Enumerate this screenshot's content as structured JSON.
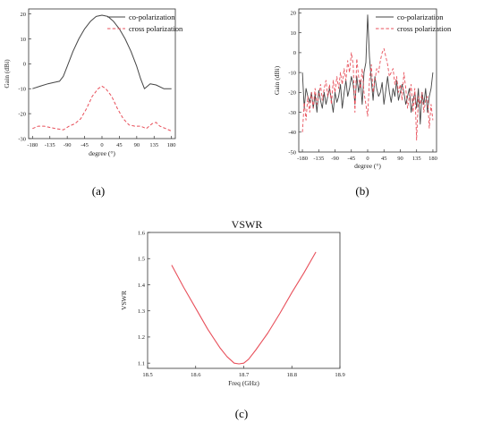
{
  "chart_data": [
    {
      "type": "line",
      "panel_label": "(a)",
      "xlabel": "degree (°)",
      "ylabel": "Gain (dBi)",
      "xlim": [
        -190,
        190
      ],
      "ylim": [
        -30,
        22
      ],
      "xticks": [
        -180,
        -135,
        -90,
        -45,
        0,
        45,
        90,
        135,
        180
      ],
      "yticks": [
        20,
        10,
        0,
        -10,
        -20,
        -30
      ],
      "legend_position": "top-right",
      "series": [
        {
          "name": "co-polarization",
          "color": "#444444",
          "dash": "solid",
          "x": [
            -180,
            -160,
            -140,
            -125,
            -110,
            -100,
            -90,
            -75,
            -60,
            -45,
            -30,
            -15,
            0,
            15,
            30,
            45,
            60,
            75,
            90,
            100,
            110,
            125,
            140,
            160,
            180
          ],
          "y": [
            -10,
            -9,
            -8,
            -7.5,
            -7,
            -5,
            -1,
            5,
            10,
            14,
            17,
            19,
            19.5,
            19,
            17,
            14,
            10,
            5,
            -1,
            -6,
            -10,
            -8,
            -8.5,
            -10,
            -10
          ]
        },
        {
          "name": "cross polarization",
          "color": "#e8505b",
          "dash": "dashed",
          "x": [
            -180,
            -165,
            -150,
            -135,
            -120,
            -100,
            -85,
            -70,
            -55,
            -40,
            -25,
            -10,
            0,
            10,
            25,
            40,
            55,
            70,
            85,
            100,
            115,
            130,
            140,
            150,
            165,
            180
          ],
          "y": [
            -26,
            -25,
            -25,
            -25.5,
            -26,
            -26.5,
            -25,
            -24,
            -22,
            -18,
            -13,
            -10,
            -9,
            -10,
            -13,
            -18,
            -22,
            -24.5,
            -25,
            -25,
            -26,
            -24,
            -23.5,
            -25,
            -26,
            -27
          ]
        }
      ]
    },
    {
      "type": "line",
      "panel_label": "(b)",
      "xlabel": "degree (°)",
      "ylabel": "Gain (dBi)",
      "xlim": [
        -190,
        190
      ],
      "ylim": [
        -50,
        22
      ],
      "xticks": [
        -180,
        -135,
        -90,
        -45,
        0,
        45,
        90,
        135,
        180
      ],
      "yticks": [
        20,
        10,
        0,
        -10,
        -20,
        -30,
        -40,
        -50
      ],
      "legend_position": "top-right",
      "series": [
        {
          "name": "co-polarization",
          "color": "#444444",
          "dash": "solid",
          "x": [
            -180,
            -175,
            -170,
            -165,
            -160,
            -155,
            -150,
            -145,
            -140,
            -135,
            -130,
            -125,
            -120,
            -115,
            -110,
            -105,
            -100,
            -95,
            -90,
            -85,
            -80,
            -75,
            -70,
            -65,
            -60,
            -55,
            -50,
            -45,
            -40,
            -35,
            -30,
            -25,
            -20,
            -15,
            -10,
            -5,
            0,
            5,
            10,
            15,
            20,
            25,
            30,
            35,
            40,
            45,
            50,
            55,
            60,
            65,
            70,
            75,
            80,
            85,
            90,
            95,
            100,
            105,
            110,
            115,
            120,
            125,
            130,
            135,
            140,
            145,
            150,
            155,
            160,
            165,
            170,
            175,
            180
          ],
          "y": [
            -10,
            -28,
            -18,
            -22,
            -25,
            -20,
            -28,
            -21,
            -30,
            -19,
            -24,
            -28,
            -20,
            -26,
            -22,
            -18,
            -24,
            -30,
            -20,
            -25,
            -22,
            -16,
            -28,
            -20,
            -14,
            -22,
            -18,
            -12,
            -16,
            -26,
            -12,
            -20,
            -14,
            -26,
            -10,
            -5,
            19,
            -2,
            -14,
            -24,
            -12,
            -18,
            -22,
            -20,
            -15,
            -26,
            -19,
            -12,
            -20,
            -25,
            -18,
            -22,
            -14,
            -24,
            -20,
            -16,
            -20,
            -26,
            -22,
            -18,
            -30,
            -24,
            -20,
            -28,
            -18,
            -36,
            -20,
            -26,
            -18,
            -30,
            -22,
            -18,
            -10
          ]
        },
        {
          "name": "cross polarization",
          "color": "#e8505b",
          "dash": "dashed",
          "x": [
            -180,
            -175,
            -170,
            -165,
            -160,
            -155,
            -150,
            -145,
            -140,
            -135,
            -130,
            -125,
            -120,
            -115,
            -110,
            -105,
            -100,
            -95,
            -90,
            -85,
            -80,
            -75,
            -70,
            -65,
            -60,
            -55,
            -50,
            -45,
            -40,
            -35,
            -30,
            -25,
            -20,
            -15,
            -10,
            -5,
            0,
            5,
            10,
            15,
            20,
            25,
            30,
            35,
            40,
            45,
            50,
            55,
            60,
            65,
            70,
            75,
            80,
            85,
            90,
            95,
            100,
            105,
            110,
            115,
            120,
            125,
            130,
            135,
            140,
            145,
            150,
            155,
            160,
            165,
            170,
            175,
            180
          ],
          "y": [
            -40,
            -25,
            -34,
            -22,
            -30,
            -20,
            -28,
            -18,
            -26,
            -22,
            -16,
            -24,
            -18,
            -14,
            -22,
            -16,
            -26,
            -14,
            -20,
            -12,
            -18,
            -10,
            -16,
            -8,
            -14,
            -4,
            -10,
            0,
            -6,
            -30,
            -3,
            -12,
            -18,
            -8,
            -20,
            -26,
            -32,
            -14,
            -6,
            -20,
            -14,
            -8,
            -10,
            -4,
            0,
            2,
            -2,
            -6,
            -12,
            -10,
            -8,
            -16,
            -12,
            -20,
            -16,
            -24,
            -10,
            -18,
            -28,
            -22,
            -16,
            -30,
            -18,
            -44,
            -22,
            -26,
            -20,
            -30,
            -24,
            -22,
            -38,
            -26,
            -34
          ]
        }
      ]
    },
    {
      "type": "line",
      "panel_label": "(c)",
      "title": "VSWR",
      "xlabel": "Freq (GHz)",
      "ylabel": "VSWR",
      "xlim": [
        18.5,
        18.9
      ],
      "ylim": [
        1.08,
        1.6
      ],
      "xticks": [
        18.5,
        18.6,
        18.7,
        18.8,
        18.9
      ],
      "yticks": [
        1.6,
        1.5,
        1.4,
        1.3,
        1.2,
        1.1
      ],
      "series": [
        {
          "color": "#e8505b",
          "dash": "solid",
          "x": [
            18.55,
            18.575,
            18.6,
            18.625,
            18.65,
            18.665,
            18.68,
            18.69,
            18.7,
            18.71,
            18.725,
            18.75,
            18.775,
            18.8,
            18.825,
            18.85
          ],
          "y": [
            1.475,
            1.39,
            1.31,
            1.23,
            1.16,
            1.125,
            1.1,
            1.097,
            1.1,
            1.115,
            1.15,
            1.215,
            1.29,
            1.37,
            1.445,
            1.525
          ]
        }
      ]
    }
  ]
}
